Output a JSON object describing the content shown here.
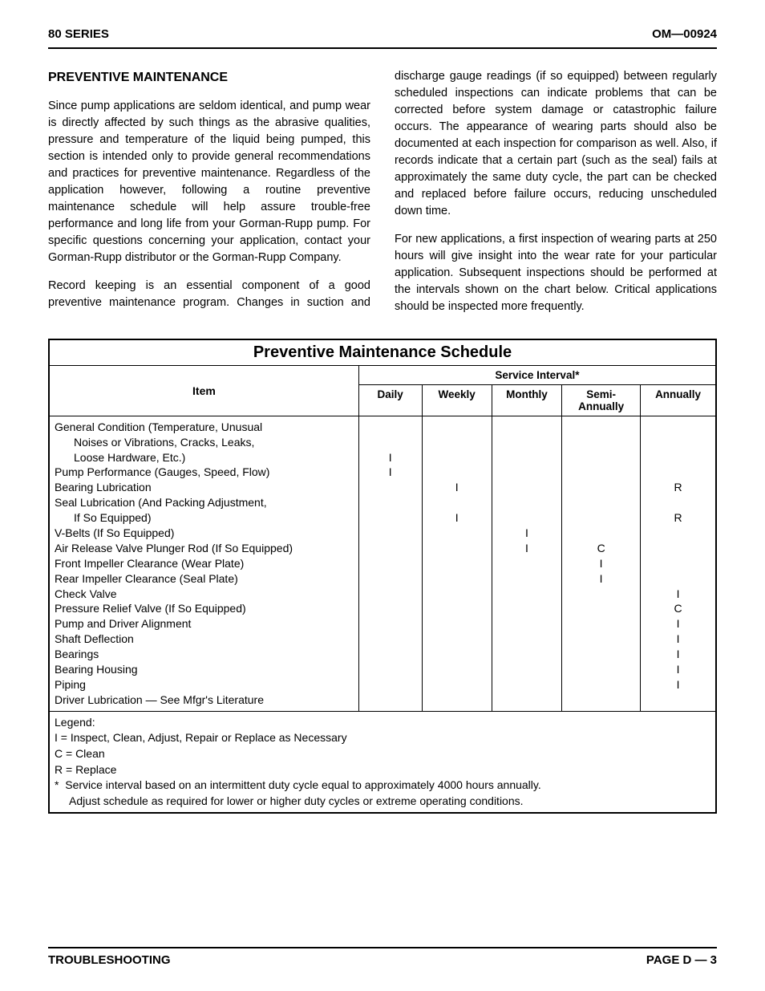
{
  "header": {
    "left": "80 SERIES",
    "right": "OM—00924"
  },
  "section_title": "PREVENTIVE MAINTENANCE",
  "paragraphs": {
    "p1": "Since pump applications are seldom identical, and pump wear is directly affected by such things as the abrasive qualities, pressure and temperature of the liquid being pumped, this section is intended only to provide general recommendations and practices for preventive maintenance. Regardless of the application however, following a routine preventive maintenance schedule will help assure trouble-free performance and long life from your Gorman-Rupp pump. For specific questions concerning your application, contact your Gorman-Rupp distributor or the Gorman-Rupp Company.",
    "p2": "Record keeping is an essential component of a good preventive maintenance program. Changes in suction and discharge gauge readings (if so equipped) between regularly scheduled inspections can indicate problems that can be corrected before system damage or catastrophic failure occurs. The appearance of wearing parts should also be documented at each inspection for comparison as well. Also, if records indicate that a certain part (such as the seal) fails at approximately the same duty cycle, the part can be checked and replaced before failure occurs, reducing unscheduled down time.",
    "p3": "For new applications, a first inspection of wearing parts at 250 hours will give insight into the wear rate for your particular application. Subsequent inspections should be performed at the intervals shown on the chart below. Critical applications should be inspected more frequently."
  },
  "table": {
    "title": "Preventive Maintenance Schedule",
    "item_header": "Item",
    "interval_header": "Service Interval*",
    "cols": {
      "c1": "Daily",
      "c2": "Weekly",
      "c3": "Monthly",
      "c4": "Semi-\nAnnually",
      "c5": "Annually"
    },
    "rows": [
      {
        "label": "General Condition (Temperature, Unusual",
        "indent": false
      },
      {
        "label": "Noises or Vibrations, Cracks, Leaks,",
        "indent": true
      },
      {
        "label": "Loose Hardware, Etc.)",
        "indent": true,
        "daily": "I"
      },
      {
        "label": "Pump Performance (Gauges, Speed, Flow)",
        "indent": false,
        "daily": "I"
      },
      {
        "label": "Bearing Lubrication",
        "indent": false,
        "weekly": "I",
        "annually": "R"
      },
      {
        "label": "Seal Lubrication (And Packing Adjustment,",
        "indent": false
      },
      {
        "label": "If So Equipped)",
        "indent": true,
        "weekly": "I",
        "annually": "R"
      },
      {
        "label": "V-Belts (If So Equipped)",
        "indent": false,
        "monthly": "I"
      },
      {
        "label": "Air Release Valve Plunger Rod (If So Equipped)",
        "indent": false,
        "monthly": "I",
        "semi": "C"
      },
      {
        "label": "Front Impeller Clearance (Wear Plate)",
        "indent": false,
        "semi": "I"
      },
      {
        "label": "Rear Impeller Clearance (Seal Plate)",
        "indent": false,
        "semi": "I"
      },
      {
        "label": "Check Valve",
        "indent": false,
        "annually": "I"
      },
      {
        "label": "Pressure Relief Valve (If So Equipped)",
        "indent": false,
        "annually": "C"
      },
      {
        "label": "Pump and Driver Alignment",
        "indent": false,
        "annually": "I"
      },
      {
        "label": "Shaft Deflection",
        "indent": false,
        "annually": "I"
      },
      {
        "label": "Bearings",
        "indent": false,
        "annually": "I"
      },
      {
        "label": "Bearing Housing",
        "indent": false,
        "annually": "I"
      },
      {
        "label": "Piping",
        "indent": false,
        "annually": "I"
      },
      {
        "label": "Driver Lubrication — See Mfgr's Literature",
        "indent": false
      }
    ],
    "legend": {
      "title": "Legend:",
      "l1": "I  =  Inspect, Clean, Adjust, Repair or Replace as Necessary",
      "l2": "C =  Clean",
      "l3": "R =  Replace",
      "note_star": "*",
      "note1": "Service interval based on an intermittent duty cycle equal to approximately 4000 hours annually.",
      "note2": "Adjust schedule as required for lower or higher duty cycles or extreme operating conditions."
    }
  },
  "footer": {
    "left": "TROUBLESHOOTING",
    "right": "PAGE D — 3"
  }
}
